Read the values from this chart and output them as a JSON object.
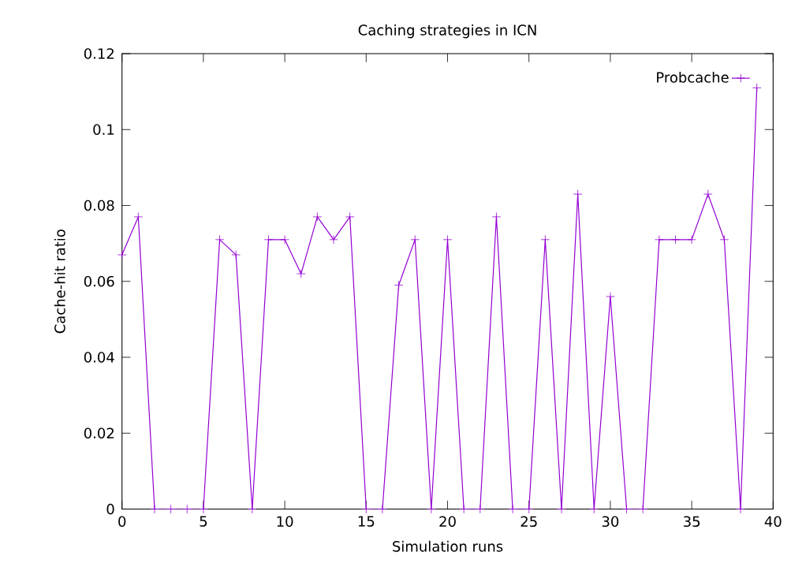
{
  "chart_data": {
    "type": "line",
    "title": "Caching strategies in ICN",
    "xlabel": "Simulation runs",
    "ylabel": "Cache-hit ratio",
    "x": [
      0,
      1,
      2,
      3,
      4,
      5,
      6,
      7,
      8,
      9,
      10,
      11,
      12,
      13,
      14,
      15,
      16,
      17,
      18,
      19,
      20,
      21,
      22,
      23,
      24,
      25,
      26,
      27,
      28,
      29,
      30,
      31,
      32,
      33,
      34,
      35,
      36,
      37,
      38,
      39
    ],
    "series": [
      {
        "name": "Probcache",
        "color": "#9400d3",
        "values": [
          0.067,
          0.077,
          0,
          0,
          0,
          0,
          0.071,
          0.067,
          0,
          0.071,
          0.071,
          0.062,
          0.077,
          0.071,
          0.077,
          0,
          0,
          0.059,
          0.071,
          0,
          0.071,
          0,
          0,
          0.077,
          0,
          0,
          0.071,
          0,
          0.083,
          0,
          0.056,
          0,
          0,
          0.071,
          0.071,
          0.071,
          0.083,
          0.071,
          0,
          0.111
        ]
      }
    ],
    "xlim": [
      0,
      40
    ],
    "xticks": [
      0,
      5,
      10,
      15,
      20,
      25,
      30,
      35,
      40
    ],
    "ylim": [
      0,
      0.12
    ],
    "yticks": [
      0,
      0.02,
      0.04,
      0.06,
      0.08,
      0.1,
      0.12
    ],
    "marker": "cross",
    "line_style": "solid",
    "legend": "top right",
    "grid": false
  }
}
